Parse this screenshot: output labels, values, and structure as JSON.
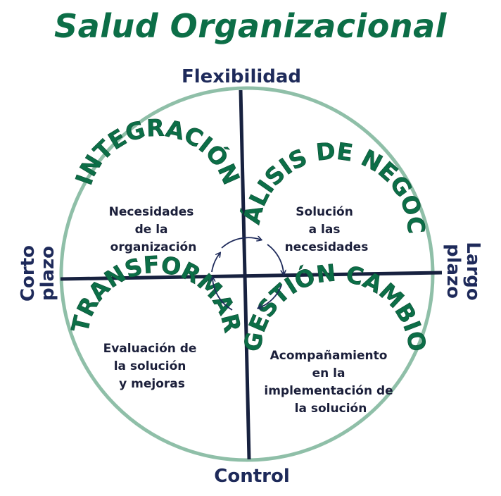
{
  "title": "Salud Organizacional",
  "axes": {
    "top": "Flexibilidad",
    "bottom": "Control",
    "left": [
      "Corto",
      "plazo"
    ],
    "right": [
      "Largo",
      "plazo"
    ]
  },
  "quadrants": {
    "top_left": {
      "heading": "INTEGRACIÓN",
      "desc": [
        "Necesidades",
        "de la",
        "organización"
      ]
    },
    "top_right": {
      "heading": "ANÁLISIS DE NEGOCIO",
      "desc": [
        "Solución",
        "a las",
        "necesidades"
      ]
    },
    "bottom_left": {
      "heading": "TRANSFORMAR",
      "desc": [
        "Evaluación de",
        "la solución",
        "y mejoras"
      ]
    },
    "bottom_right": {
      "heading": "GESTIÓN CAMBIO",
      "desc": [
        "Acompañamiento",
        "en la",
        "implementación de",
        "la solución"
      ]
    }
  },
  "colors": {
    "title": "#0c6e47",
    "circle": "#8fbfa8",
    "axis_lines": "#17213f",
    "axis_text": "#1e2a5a",
    "heading": "#0c6e47",
    "desc": "#1b1f3a"
  }
}
